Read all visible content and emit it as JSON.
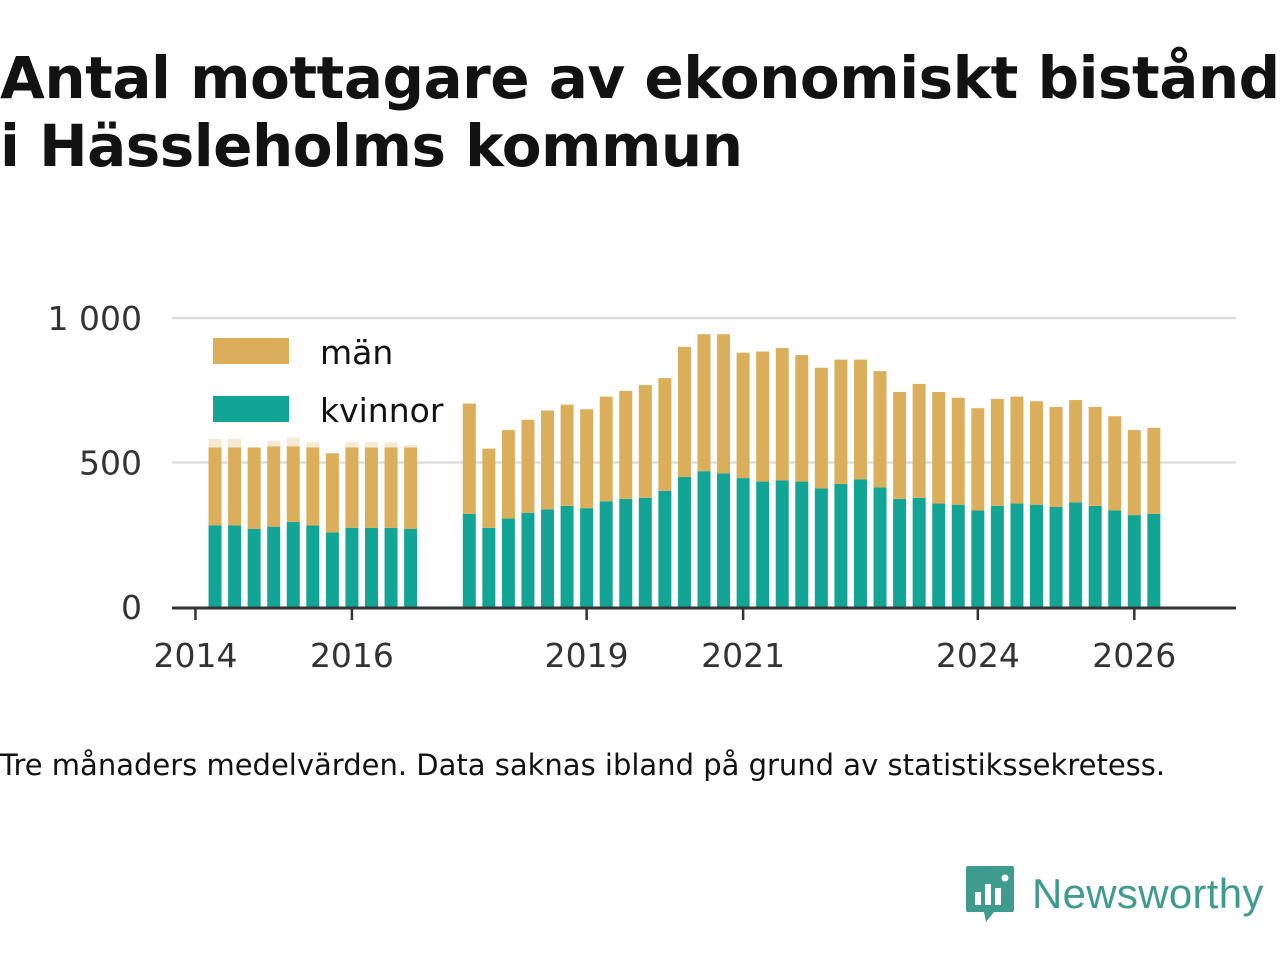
{
  "title": "Antal mottagare av ekonomiskt bistånd i Hässleholms kommun",
  "caption": "Tre månaders medelvärden. Data saknas ibland på grund av statistikssekretess.",
  "brand": {
    "name": "Newsworthy",
    "icon": "newsworthy-logo-icon",
    "color": "#3f9b8e"
  },
  "colors": {
    "men": "#dbae5c",
    "women": "#12a596",
    "men_faint": "#f5e9d2",
    "grid": "#dddddd",
    "axis": "#333333"
  },
  "chart_data": {
    "type": "bar",
    "stacked": true,
    "title": "Antal mottagare av ekonomiskt bistånd i Hässleholms kommun",
    "xlabel": "",
    "ylabel": "",
    "ylim": [
      0,
      1000
    ],
    "yticks": [
      0,
      500,
      1000
    ],
    "ytick_labels": [
      "0",
      "500",
      "1 000"
    ],
    "xticks": [
      2014,
      2016,
      2019,
      2021,
      2024,
      2026
    ],
    "xtick_labels": [
      "2014",
      "2016",
      "2019",
      "2021",
      "2024",
      "2026"
    ],
    "xlim": [
      2013.7,
      2027.3
    ],
    "grid": true,
    "legend_position": "top-left",
    "categories": [
      2014.25,
      2014.5,
      2014.75,
      2015.0,
      2015.25,
      2015.5,
      2015.75,
      2016.0,
      2016.25,
      2016.5,
      2016.75,
      2017.5,
      2017.75,
      2018.0,
      2018.25,
      2018.5,
      2018.75,
      2019.0,
      2019.25,
      2019.5,
      2019.75,
      2020.0,
      2020.25,
      2020.5,
      2020.75,
      2021.0,
      2021.25,
      2021.5,
      2021.75,
      2022.0,
      2022.25,
      2022.5,
      2022.75,
      2023.0,
      2023.25,
      2023.5,
      2023.75,
      2024.0,
      2024.25,
      2024.5,
      2024.75,
      2025.0,
      2025.25,
      2025.5,
      2025.75,
      2026.0,
      2026.25
    ],
    "series": [
      {
        "name": "kvinnor",
        "color": "#12a596",
        "values": [
          282,
          282,
          270,
          278,
          294,
          282,
          258,
          274,
          274,
          274,
          270,
          322,
          274,
          306,
          326,
          338,
          350,
          342,
          366,
          374,
          378,
          402,
          450,
          470,
          462,
          446,
          434,
          438,
          434,
          410,
          426,
          442,
          414,
          374,
          378,
          358,
          354,
          334,
          350,
          358,
          354,
          346,
          362,
          350,
          334,
          318,
          322
        ]
      },
      {
        "name": "män",
        "color": "#dbae5c",
        "values": [
          270,
          270,
          282,
          278,
          262,
          270,
          274,
          278,
          278,
          278,
          282,
          382,
          274,
          306,
          322,
          342,
          350,
          342,
          362,
          374,
          390,
          390,
          450,
          474,
          482,
          434,
          450,
          458,
          438,
          418,
          430,
          414,
          402,
          370,
          394,
          386,
          370,
          354,
          370,
          370,
          358,
          346,
          354,
          342,
          326,
          294,
          298
        ]
      }
    ],
    "suppressed_extra": {
      "label": "Data saknas ibland",
      "values": [
        30,
        30,
        0,
        18,
        30,
        18,
        0,
        18,
        18,
        18,
        8,
        0,
        0,
        0,
        0,
        0,
        0,
        0,
        0,
        0,
        0,
        0,
        0,
        0,
        0,
        0,
        0,
        0,
        0,
        0,
        0,
        0,
        0,
        0,
        0,
        0,
        0,
        0,
        0,
        0,
        0,
        0,
        0,
        0,
        0,
        0,
        0
      ]
    }
  }
}
